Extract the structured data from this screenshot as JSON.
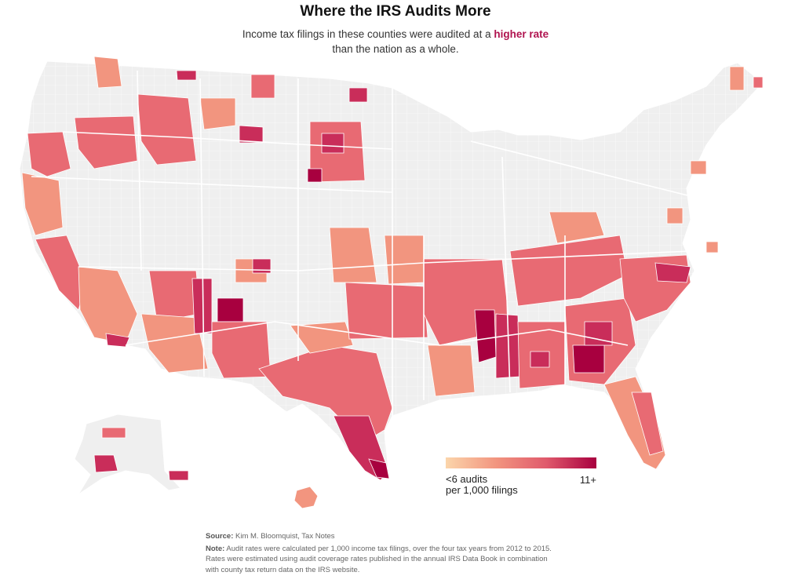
{
  "title": "Where the IRS Audits More",
  "subtitle": {
    "line1_prefix": "Income tax filings in these counties were audited at a ",
    "line1_highlight": "higher rate",
    "line2": "than the nation as a whole."
  },
  "legend": {
    "min_label_line1": "<6 audits",
    "min_label_line2": "per 1,000 filings",
    "max_label": "11+",
    "color_low": "#fbd5ab",
    "color_high": "#a8003f"
  },
  "colors": {
    "base_land": "#efefef",
    "borders": "#ffffff",
    "light": "#f2957f",
    "medium": "#e86a73",
    "high": "#c92d5a",
    "highest": "#a8003f"
  },
  "notes": {
    "source_label": "Source:",
    "source_text": "Kim M. Bloomquist, Tax Notes",
    "note_label": "Note:",
    "note_line1": "Audit rates were calculated per 1,000 income tax filings, over the four tax years from 2012 to 2015.",
    "note_line2": "Rates were estimated using audit coverage rates published in the annual IRS Data Book in combination",
    "note_line3": "with county tax return data on the IRS website."
  }
}
